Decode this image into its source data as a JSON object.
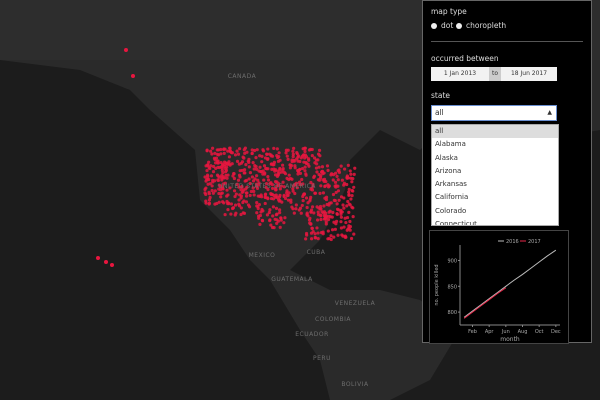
{
  "map_labels": [
    "CANADA",
    "UNITED STATES OF AMERICA",
    "MEXICO",
    "CUBA",
    "GUATEMALA",
    "VENEZUELA",
    "COLOMBIA",
    "ECUADOR",
    "PERU",
    "BOLIVIA"
  ],
  "controls": {
    "map_type": {
      "label": "map type",
      "options": [
        "dot",
        "choropleth"
      ]
    },
    "date_range": {
      "label": "occurred between",
      "from": "1 Jan 2013",
      "to_label": "to",
      "to": "18 Jun 2017"
    },
    "state": {
      "label": "state",
      "input": "all",
      "options": [
        "all",
        "Alabama",
        "Alaska",
        "Arizona",
        "Arkansas",
        "California",
        "Colorado",
        "Connecticut"
      ]
    }
  },
  "chart": {
    "type": "line",
    "x_label": "month",
    "y_label": "no. people killed",
    "x": [
      1,
      2,
      3,
      4,
      5,
      6,
      7,
      8,
      9,
      10,
      11,
      12
    ],
    "xlim": [
      0.5,
      12.5
    ],
    "xticks": [
      {
        "value": 2,
        "label": "Feb"
      },
      {
        "value": 4,
        "label": "Apr"
      },
      {
        "value": 6,
        "label": "Jun"
      },
      {
        "value": 8,
        "label": "Aug"
      },
      {
        "value": 10,
        "label": "Oct"
      },
      {
        "value": 12,
        "label": "Dec"
      }
    ],
    "ylim": [
      775,
      930
    ],
    "yticks": [
      800,
      850,
      900
    ],
    "series": [
      {
        "name": "2016",
        "color": "#bbbbbb",
        "values": [
          790,
          802,
          814,
          826,
          838,
          850,
          862,
          873,
          885,
          897,
          909,
          920
        ]
      },
      {
        "name": "2017",
        "color": "#e8294a",
        "values": [
          788,
          800,
          812,
          824,
          836,
          847,
          null,
          null,
          null,
          null,
          null,
          null
        ]
      }
    ]
  }
}
